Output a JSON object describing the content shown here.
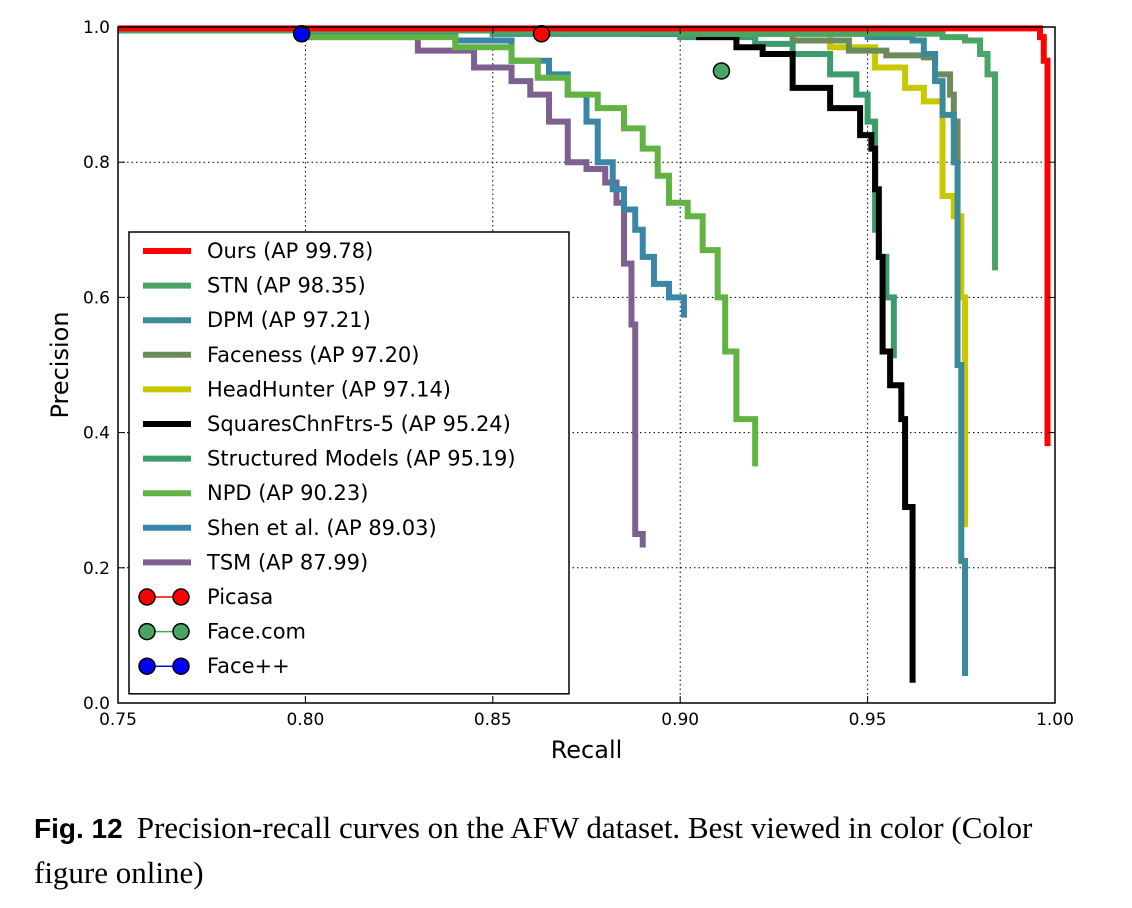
{
  "caption": {
    "label": "Fig. 12",
    "text": "Precision-recall curves on the AFW dataset. Best viewed in color (Color figure online)"
  },
  "chart_data": {
    "type": "line",
    "xlabel": "Recall",
    "ylabel": "Precision",
    "xlim": [
      0.75,
      1.0
    ],
    "ylim": [
      0.0,
      1.0
    ],
    "xticks": [
      "0.75",
      "0.80",
      "0.85",
      "0.90",
      "0.95",
      "1.00"
    ],
    "yticks": [
      "0.0",
      "0.2",
      "0.4",
      "0.6",
      "0.8",
      "1.0"
    ],
    "grid": true,
    "legend_position": "lower-left",
    "series": [
      {
        "name": "Ours (AP 99.78)",
        "color": "#ff0000",
        "points": [
          [
            0.75,
            0.998
          ],
          [
            0.85,
            0.998
          ],
          [
            0.95,
            0.998
          ],
          [
            0.995,
            0.998
          ],
          [
            0.996,
            0.985
          ],
          [
            0.997,
            0.97
          ],
          [
            0.997,
            0.95
          ],
          [
            0.998,
            0.9
          ],
          [
            0.998,
            0.38
          ]
        ]
      },
      {
        "name": "STN (AP 98.35)",
        "color": "#4aa564",
        "points": [
          [
            0.75,
            0.995
          ],
          [
            0.85,
            0.992
          ],
          [
            0.9,
            0.99
          ],
          [
            0.95,
            0.99
          ],
          [
            0.97,
            0.985
          ],
          [
            0.976,
            0.98
          ],
          [
            0.98,
            0.96
          ],
          [
            0.982,
            0.93
          ],
          [
            0.984,
            0.9
          ],
          [
            0.984,
            0.8
          ],
          [
            0.984,
            0.64
          ]
        ]
      },
      {
        "name": "DPM (AP 97.21)",
        "color": "#3a8a9a",
        "points": [
          [
            0.75,
            0.995
          ],
          [
            0.85,
            0.99
          ],
          [
            0.9,
            0.99
          ],
          [
            0.95,
            0.985
          ],
          [
            0.962,
            0.98
          ],
          [
            0.965,
            0.96
          ],
          [
            0.968,
            0.92
          ],
          [
            0.97,
            0.87
          ],
          [
            0.973,
            0.8
          ],
          [
            0.974,
            0.72
          ],
          [
            0.974,
            0.5
          ],
          [
            0.975,
            0.4
          ],
          [
            0.975,
            0.21
          ],
          [
            0.976,
            0.15
          ],
          [
            0.976,
            0.04
          ]
        ]
      },
      {
        "name": "Faceness (AP 97.20)",
        "color": "#6d8a5a",
        "points": [
          [
            0.75,
            0.995
          ],
          [
            0.9,
            0.99
          ],
          [
            0.93,
            0.98
          ],
          [
            0.945,
            0.965
          ],
          [
            0.955,
            0.958
          ],
          [
            0.965,
            0.955
          ],
          [
            0.968,
            0.93
          ],
          [
            0.972,
            0.9
          ],
          [
            0.973,
            0.86
          ],
          [
            0.974,
            0.8
          ]
        ]
      },
      {
        "name": "HeadHunter (AP 97.14)",
        "color": "#c8c800",
        "points": [
          [
            0.75,
            0.995
          ],
          [
            0.9,
            0.99
          ],
          [
            0.94,
            0.97
          ],
          [
            0.952,
            0.94
          ],
          [
            0.96,
            0.91
          ],
          [
            0.965,
            0.89
          ],
          [
            0.97,
            0.88
          ],
          [
            0.97,
            0.8
          ],
          [
            0.97,
            0.75
          ],
          [
            0.973,
            0.72
          ],
          [
            0.975,
            0.6
          ],
          [
            0.976,
            0.42
          ],
          [
            0.976,
            0.26
          ]
        ]
      },
      {
        "name": "SquaresChnFtrs-5 (AP 95.24)",
        "color": "#000000",
        "points": [
          [
            0.75,
            0.995
          ],
          [
            0.89,
            0.99
          ],
          [
            0.905,
            0.985
          ],
          [
            0.915,
            0.97
          ],
          [
            0.922,
            0.96
          ],
          [
            0.93,
            0.91
          ],
          [
            0.94,
            0.88
          ],
          [
            0.948,
            0.84
          ],
          [
            0.951,
            0.82
          ],
          [
            0.952,
            0.76
          ],
          [
            0.953,
            0.66
          ],
          [
            0.954,
            0.52
          ],
          [
            0.956,
            0.47
          ],
          [
            0.959,
            0.42
          ],
          [
            0.96,
            0.29
          ],
          [
            0.962,
            0.03
          ]
        ]
      },
      {
        "name": "Structured Models (AP 95.19)",
        "color": "#3c9c6c",
        "points": [
          [
            0.75,
            0.995
          ],
          [
            0.85,
            0.99
          ],
          [
            0.9,
            0.985
          ],
          [
            0.92,
            0.975
          ],
          [
            0.93,
            0.96
          ],
          [
            0.94,
            0.93
          ],
          [
            0.947,
            0.9
          ],
          [
            0.95,
            0.86
          ],
          [
            0.952,
            0.7
          ],
          [
            0.953,
            0.66
          ],
          [
            0.955,
            0.6
          ],
          [
            0.957,
            0.51
          ]
        ]
      },
      {
        "name": "NPD (AP 90.23)",
        "color": "#62b244",
        "points": [
          [
            0.75,
            0.995
          ],
          [
            0.8,
            0.985
          ],
          [
            0.84,
            0.97
          ],
          [
            0.855,
            0.95
          ],
          [
            0.862,
            0.925
          ],
          [
            0.87,
            0.9
          ],
          [
            0.878,
            0.88
          ],
          [
            0.885,
            0.85
          ],
          [
            0.89,
            0.82
          ],
          [
            0.894,
            0.78
          ],
          [
            0.897,
            0.74
          ],
          [
            0.902,
            0.72
          ],
          [
            0.906,
            0.67
          ],
          [
            0.91,
            0.6
          ],
          [
            0.912,
            0.52
          ],
          [
            0.915,
            0.42
          ],
          [
            0.92,
            0.35
          ]
        ]
      },
      {
        "name": "Shen et al. (AP 89.03)",
        "color": "#3a86a8",
        "points": [
          [
            0.75,
            0.995
          ],
          [
            0.8,
            0.99
          ],
          [
            0.84,
            0.98
          ],
          [
            0.855,
            0.95
          ],
          [
            0.865,
            0.93
          ],
          [
            0.87,
            0.9
          ],
          [
            0.875,
            0.86
          ],
          [
            0.878,
            0.8
          ],
          [
            0.882,
            0.76
          ],
          [
            0.885,
            0.73
          ],
          [
            0.888,
            0.7
          ],
          [
            0.89,
            0.66
          ],
          [
            0.893,
            0.62
          ],
          [
            0.897,
            0.6
          ],
          [
            0.901,
            0.57
          ]
        ]
      },
      {
        "name": "TSM (AP 87.99)",
        "color": "#7d6090",
        "points": [
          [
            0.75,
            0.995
          ],
          [
            0.8,
            0.985
          ],
          [
            0.83,
            0.965
          ],
          [
            0.845,
            0.94
          ],
          [
            0.855,
            0.92
          ],
          [
            0.86,
            0.9
          ],
          [
            0.865,
            0.86
          ],
          [
            0.87,
            0.8
          ],
          [
            0.875,
            0.79
          ],
          [
            0.88,
            0.77
          ],
          [
            0.883,
            0.74
          ],
          [
            0.885,
            0.65
          ],
          [
            0.887,
            0.56
          ],
          [
            0.888,
            0.35
          ],
          [
            0.888,
            0.25
          ],
          [
            0.89,
            0.23
          ]
        ]
      }
    ],
    "points": [
      {
        "name": "Picasa",
        "color": "#ff0000",
        "x": 0.863,
        "y": 0.99
      },
      {
        "name": "Face.com",
        "color": "#4aa564",
        "x": 0.911,
        "y": 0.935
      },
      {
        "name": "Face++",
        "color": "#0000ff",
        "x": 0.799,
        "y": 0.99
      }
    ]
  }
}
